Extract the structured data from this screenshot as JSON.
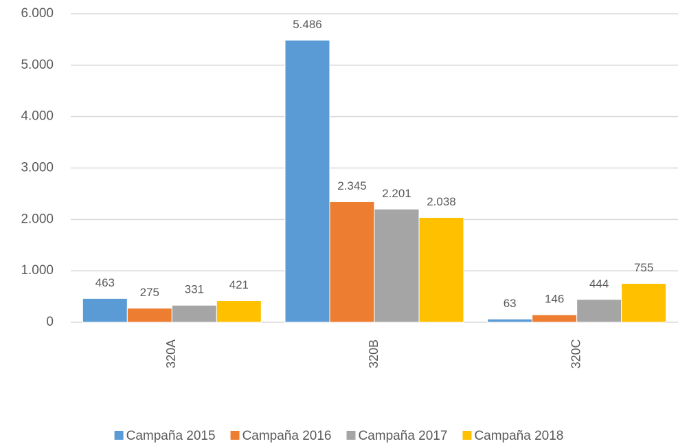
{
  "chart_data": {
    "type": "bar",
    "categories": [
      "320A",
      "320B",
      "320C"
    ],
    "series": [
      {
        "name": "Campaña 2015",
        "color": "#5b9bd5",
        "values": [
          463,
          5486,
          63
        ],
        "value_labels": [
          "463",
          "5.486",
          "63"
        ]
      },
      {
        "name": "Campaña 2016",
        "color": "#ed7d31",
        "values": [
          275,
          2345,
          146
        ],
        "value_labels": [
          "275",
          "2.345",
          "146"
        ]
      },
      {
        "name": "Campaña 2017",
        "color": "#a5a5a5",
        "values": [
          331,
          2201,
          444
        ],
        "value_labels": [
          "331",
          "2.201",
          "444"
        ]
      },
      {
        "name": "Campaña 2018",
        "color": "#ffc000",
        "values": [
          421,
          2038,
          755
        ],
        "value_labels": [
          "421",
          "2.038",
          "755"
        ]
      }
    ],
    "ylim": [
      0,
      6000
    ],
    "yticks": [
      0,
      {
        "value": 1000,
        "label": "1.000"
      },
      {
        "value": 2000,
        "label": "2.000"
      },
      {
        "value": 3000,
        "label": "3.000"
      },
      {
        "value": 4000,
        "label": "4.000"
      },
      {
        "value": 5000,
        "label": "5.000"
      },
      {
        "value": 6000,
        "label": "6.000"
      }
    ],
    "grid": true,
    "legend": "bottom"
  }
}
